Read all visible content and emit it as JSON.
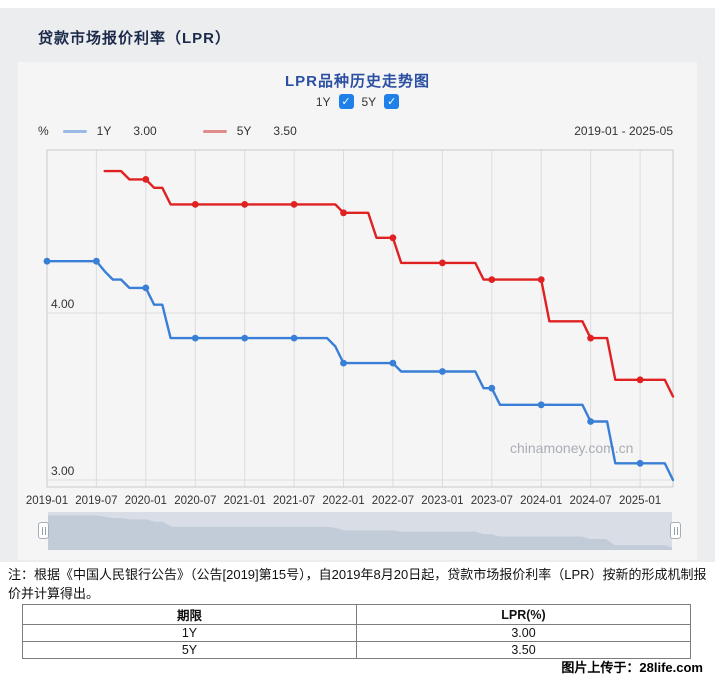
{
  "page": {
    "title": "贷款市场报价利率（LPR）"
  },
  "chart": {
    "title": "LPR品种历史走势图",
    "range_label": "2019-01 - 2025-05",
    "unit_label": "%",
    "watermark": "chinamoney.com.cn"
  },
  "controls": {
    "items": [
      {
        "label": "1Y",
        "checked": true,
        "check_glyph": "✓"
      },
      {
        "label": "5Y",
        "checked": true,
        "check_glyph": "✓"
      }
    ]
  },
  "legend": {
    "items": [
      {
        "label": "1Y",
        "value": "3.00",
        "swatch_color": "#9bb9e4"
      },
      {
        "label": "5Y",
        "value": "3.50",
        "swatch_color": "#e28b8b"
      }
    ]
  },
  "chart_data": {
    "type": "line",
    "title": "LPR品种历史走势图",
    "xlabel": "",
    "ylabel": "%",
    "x_frequency": "monthly",
    "x_start": "2019-01",
    "x_end": "2025-05",
    "x_tick_labels": [
      "2019-01",
      "2019-07",
      "2020-01",
      "2020-07",
      "2021-01",
      "2021-07",
      "2022-01",
      "2022-07",
      "2023-01",
      "2023-07",
      "2024-01",
      "2024-07",
      "2025-01"
    ],
    "y_ticks": [
      4.0,
      3.0
    ],
    "y_tick_labels": [
      "4.00",
      "3.00"
    ],
    "ylim": [
      2.96,
      4.98
    ],
    "grid": true,
    "legend_position": "top-left",
    "marker_note": "dots drawn on January and July data points",
    "series": [
      {
        "name": "1Y",
        "color": "#3a7fd6",
        "values": [
          4.31,
          4.31,
          4.31,
          4.31,
          4.31,
          4.31,
          4.31,
          4.25,
          4.2,
          4.2,
          4.15,
          4.15,
          4.15,
          4.05,
          4.05,
          3.85,
          3.85,
          3.85,
          3.85,
          3.85,
          3.85,
          3.85,
          3.85,
          3.85,
          3.85,
          3.85,
          3.85,
          3.85,
          3.85,
          3.85,
          3.85,
          3.85,
          3.85,
          3.85,
          3.85,
          3.8,
          3.7,
          3.7,
          3.7,
          3.7,
          3.7,
          3.7,
          3.7,
          3.65,
          3.65,
          3.65,
          3.65,
          3.65,
          3.65,
          3.65,
          3.65,
          3.65,
          3.65,
          3.55,
          3.55,
          3.45,
          3.45,
          3.45,
          3.45,
          3.45,
          3.45,
          3.45,
          3.45,
          3.45,
          3.45,
          3.45,
          3.35,
          3.35,
          3.35,
          3.1,
          3.1,
          3.1,
          3.1,
          3.1,
          3.1,
          3.1,
          3.0
        ]
      },
      {
        "name": "5Y",
        "color": "#e02121",
        "values": [
          null,
          null,
          null,
          null,
          null,
          null,
          null,
          4.85,
          4.85,
          4.85,
          4.8,
          4.8,
          4.8,
          4.75,
          4.75,
          4.65,
          4.65,
          4.65,
          4.65,
          4.65,
          4.65,
          4.65,
          4.65,
          4.65,
          4.65,
          4.65,
          4.65,
          4.65,
          4.65,
          4.65,
          4.65,
          4.65,
          4.65,
          4.65,
          4.65,
          4.65,
          4.6,
          4.6,
          4.6,
          4.6,
          4.45,
          4.45,
          4.45,
          4.3,
          4.3,
          4.3,
          4.3,
          4.3,
          4.3,
          4.3,
          4.3,
          4.3,
          4.3,
          4.2,
          4.2,
          4.2,
          4.2,
          4.2,
          4.2,
          4.2,
          4.2,
          3.95,
          3.95,
          3.95,
          3.95,
          3.95,
          3.85,
          3.85,
          3.85,
          3.6,
          3.6,
          3.6,
          3.6,
          3.6,
          3.6,
          3.6,
          3.5
        ]
      }
    ]
  },
  "note": {
    "text": "注：根据《中国人民银行公告》（公告[2019]第15号），自2019年8月20日起，贷款市场报价利率（LPR）按新的形成机制报价并计算得出。"
  },
  "table": {
    "headers": {
      "term": "期限",
      "rate": "LPR(%)"
    },
    "rows": [
      {
        "term": "1Y",
        "rate": "3.00"
      },
      {
        "term": "5Y",
        "rate": "3.50"
      }
    ]
  },
  "footer": {
    "credit": "图片上传于：28life.com"
  }
}
